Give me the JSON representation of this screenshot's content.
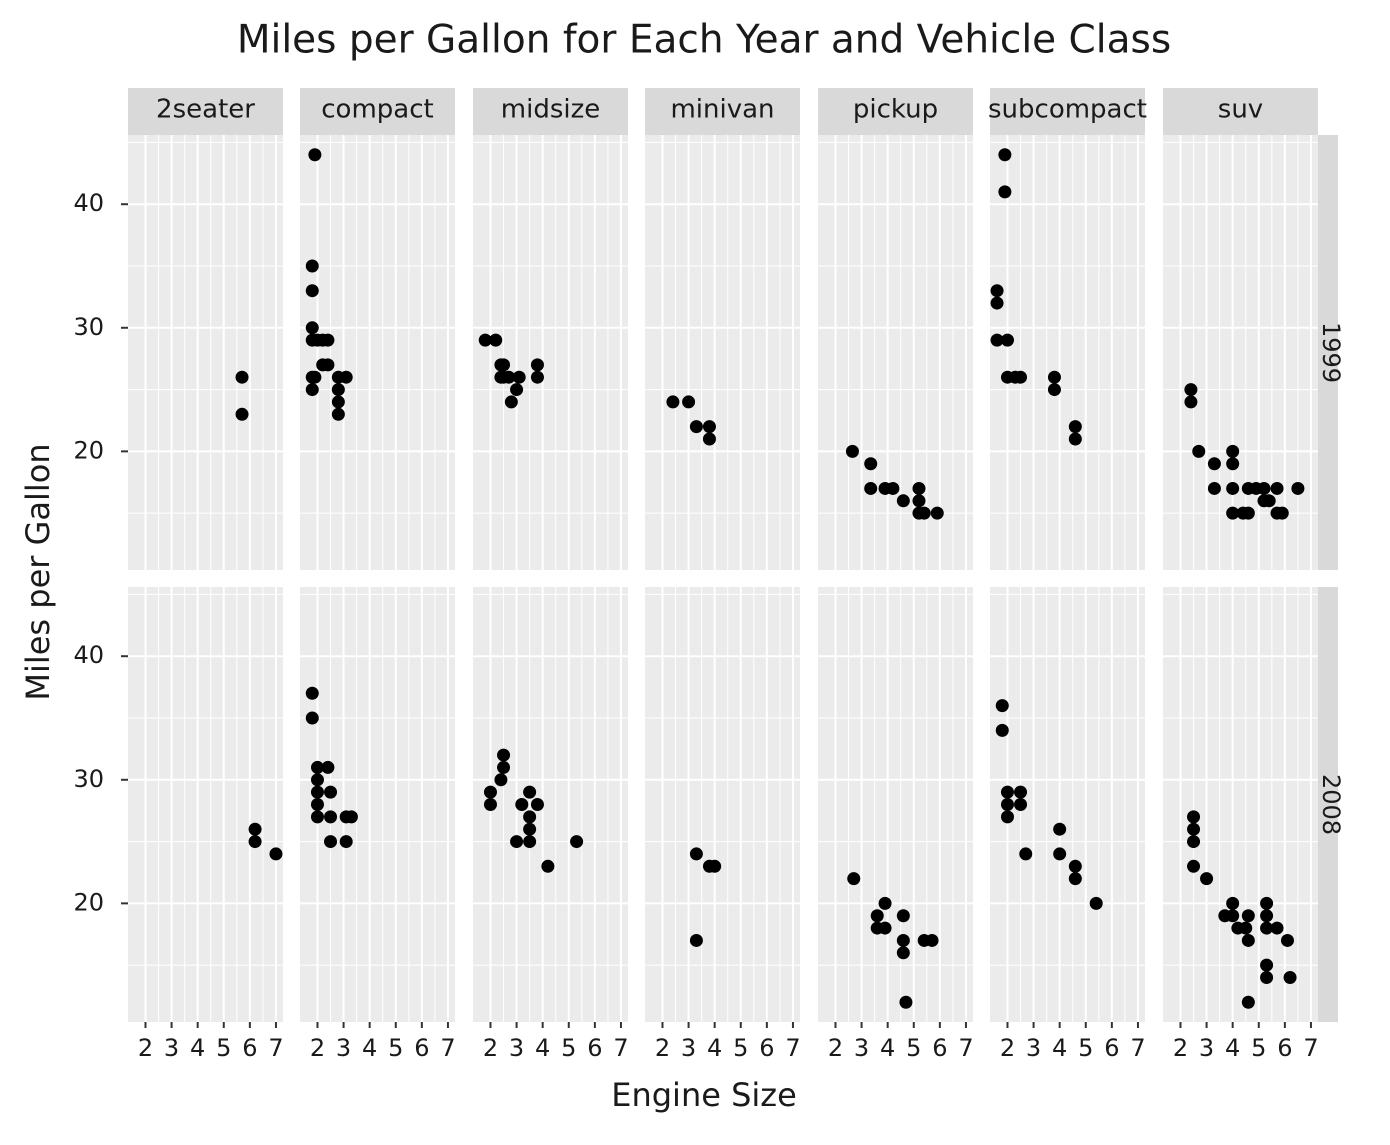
{
  "chart_data": {
    "type": "scatter",
    "title": "Miles per Gallon for Each Year and Vehicle Class",
    "x_label": "Engine Size",
    "y_label": "Miles per Gallon",
    "color": "#000000",
    "xlim": [
      1.33,
      7.27
    ],
    "ylim": [
      10.4,
      45.6
    ],
    "xticks": [
      2,
      3,
      4,
      5,
      6,
      7
    ],
    "yticks": [
      20,
      30,
      40
    ],
    "columns": [
      "2seater",
      "compact",
      "midsize",
      "minivan",
      "pickup",
      "subcompact",
      "suv"
    ],
    "rows": [
      "1999",
      "2008"
    ],
    "panels": [
      [
        {
          "x": [
            5.7,
            5.7
          ],
          "y": [
            26,
            23
          ]
        },
        {
          "x": [
            1.9,
            1.8,
            1.8,
            1.8,
            1.8,
            1.8,
            1.8,
            1.9,
            2.0,
            2.2,
            2.2,
            2.4,
            2.4,
            2.8,
            2.8,
            2.8,
            2.8,
            3.1
          ],
          "y": [
            44,
            35,
            33,
            30,
            29,
            26,
            25,
            26,
            29,
            29,
            27,
            29,
            27,
            26,
            25,
            24,
            23,
            26
          ]
        },
        {
          "x": [
            1.8,
            2.2,
            2.4,
            2.5,
            2.4,
            2.7,
            2.8,
            3.0,
            3.1,
            2.5,
            3.8,
            3.8
          ],
          "y": [
            29,
            29,
            27,
            27,
            26,
            26,
            24,
            25,
            26,
            26,
            27,
            26
          ]
        },
        {
          "x": [
            2.4,
            3.0,
            3.3,
            3.8,
            3.8
          ],
          "y": [
            24,
            24,
            22,
            22,
            21
          ]
        },
        {
          "x": [
            2.65,
            3.35,
            3.35,
            3.9,
            4.2,
            4.6,
            5.2,
            5.2,
            5.2,
            5.4,
            5.9
          ],
          "y": [
            20,
            19,
            17,
            17,
            17,
            16,
            17,
            16,
            15,
            15,
            15
          ]
        },
        {
          "x": [
            1.9,
            1.9,
            1.6,
            1.6,
            1.6,
            2.0,
            2.0,
            2.3,
            2.5,
            3.8,
            3.8,
            4.6,
            4.6
          ],
          "y": [
            44,
            41,
            33,
            32,
            29,
            29,
            26,
            26,
            26,
            26,
            25,
            22,
            21
          ]
        },
        {
          "x": [
            2.4,
            2.4,
            2.7,
            3.3,
            3.3,
            4.0,
            4.0,
            4.0,
            4.0,
            4.6,
            4.6,
            4.4,
            4.9,
            5.2,
            5.2,
            5.4,
            5.7,
            5.7,
            5.9,
            6.5
          ],
          "y": [
            25,
            24,
            20,
            19,
            17,
            20,
            19,
            17,
            15,
            17,
            15,
            15,
            17,
            16,
            17,
            16,
            17,
            15,
            15,
            17
          ]
        }
      ],
      [
        {
          "x": [
            6.2,
            6.2,
            7.0
          ],
          "y": [
            26,
            25,
            24
          ]
        },
        {
          "x": [
            1.8,
            1.8,
            2.0,
            2.0,
            2.0,
            2.0,
            2.0,
            2.4,
            2.5,
            2.5,
            2.5,
            3.1,
            3.3,
            3.1
          ],
          "y": [
            37,
            35,
            31,
            30,
            29,
            28,
            27,
            31,
            29,
            27,
            25,
            27,
            27,
            25
          ]
        },
        {
          "x": [
            2.0,
            2.0,
            2.4,
            2.5,
            2.5,
            3.0,
            3.2,
            3.5,
            3.5,
            3.5,
            3.5,
            3.8,
            4.2,
            5.3
          ],
          "y": [
            29,
            28,
            30,
            31,
            32,
            25,
            28,
            29,
            27,
            26,
            25,
            28,
            23,
            25
          ]
        },
        {
          "x": [
            3.3,
            3.3,
            3.8,
            4.0
          ],
          "y": [
            24,
            17,
            23,
            23
          ]
        },
        {
          "x": [
            2.7,
            3.6,
            3.6,
            3.9,
            3.9,
            4.6,
            4.6,
            4.6,
            4.7,
            5.4,
            5.7
          ],
          "y": [
            22,
            19,
            18,
            20,
            18,
            19,
            17,
            16,
            12,
            17,
            17
          ]
        },
        {
          "x": [
            1.8,
            1.8,
            2.0,
            2.0,
            2.0,
            2.5,
            2.5,
            2.7,
            4.0,
            4.0,
            4.6,
            4.6,
            5.4
          ],
          "y": [
            36,
            34,
            29,
            28,
            27,
            29,
            28,
            24,
            26,
            24,
            23,
            22,
            20
          ]
        },
        {
          "x": [
            2.5,
            2.5,
            2.5,
            2.5,
            3.0,
            3.7,
            4.0,
            4.0,
            4.2,
            4.5,
            4.6,
            4.6,
            4.6,
            5.3,
            5.3,
            5.3,
            5.3,
            5.3,
            5.7,
            6.1,
            6.2
          ],
          "y": [
            27,
            26,
            25,
            23,
            22,
            19,
            20,
            19,
            18,
            18,
            19,
            17,
            12,
            20,
            19,
            18,
            15,
            14,
            18,
            17,
            14
          ]
        }
      ]
    ]
  }
}
